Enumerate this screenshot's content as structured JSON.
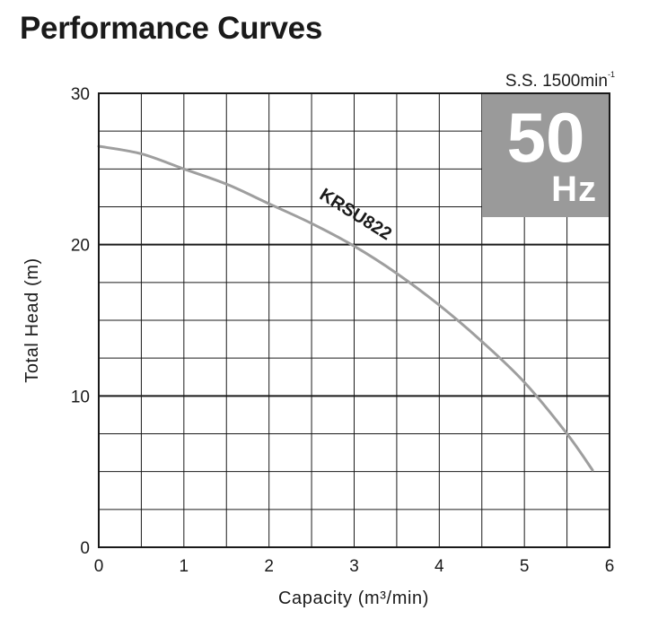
{
  "page_title": "Performance Curves",
  "speed_label": {
    "text": "S.S. 1500min",
    "superscript": "-1"
  },
  "frequency_badge": {
    "value": "50",
    "unit": "Hz",
    "color": "#9a9a9a"
  },
  "chart_data": {
    "type": "line",
    "title": "Performance Curves",
    "xlabel": "Capacity (m³/min)",
    "ylabel": "Total Head (m)",
    "xlim": [
      0,
      6
    ],
    "ylim": [
      0,
      30
    ],
    "x_ticks": [
      0,
      1,
      2,
      3,
      4,
      5,
      6
    ],
    "y_ticks": [
      0,
      10,
      20,
      30
    ],
    "x_grid_step": 0.5,
    "y_grid_step": 2.5,
    "grid": true,
    "series": [
      {
        "name": "KRSU822",
        "color": "#9e9e9e",
        "x": [
          0,
          0.5,
          1.0,
          1.5,
          2.0,
          2.5,
          3.0,
          3.5,
          4.0,
          4.5,
          5.0,
          5.5,
          5.8
        ],
        "y": [
          26.5,
          26.0,
          25.0,
          24.0,
          22.7,
          21.4,
          19.9,
          18.1,
          16.0,
          13.6,
          10.9,
          7.5,
          5.1
        ]
      }
    ]
  }
}
